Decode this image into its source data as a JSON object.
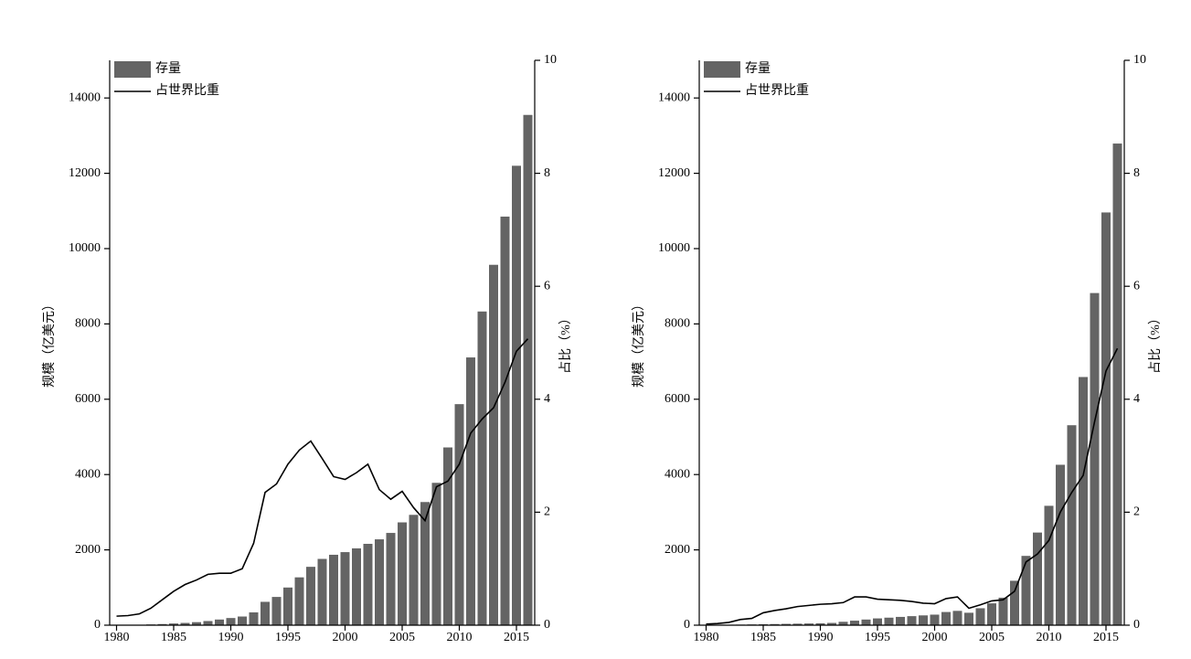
{
  "chart_data": [
    {
      "type": "combo",
      "ylabel": "规模（亿美元）",
      "y2label": "占比（%）",
      "x": [
        1980,
        1981,
        1982,
        1983,
        1984,
        1985,
        1986,
        1987,
        1988,
        1989,
        1990,
        1991,
        1992,
        1993,
        1994,
        1995,
        1996,
        1997,
        1998,
        1999,
        2000,
        2001,
        2002,
        2003,
        2004,
        2005,
        2006,
        2007,
        2008,
        2009,
        2010,
        2011,
        2012,
        2013,
        2014,
        2015,
        2016
      ],
      "xlim": [
        1979.4,
        2016.6
      ],
      "xticks": [
        1980,
        1985,
        1990,
        1995,
        2000,
        2005,
        2010,
        2015
      ],
      "ylim": [
        0,
        15000
      ],
      "yticks": [
        0,
        2000,
        4000,
        6000,
        8000,
        10000,
        12000,
        14000
      ],
      "y2lim": [
        0,
        10
      ],
      "y2ticks": [
        0,
        2,
        4,
        6,
        8,
        10
      ],
      "legend": "upper left",
      "series": [
        {
          "name": "存量",
          "type": "bar",
          "color": "#646464",
          "values": [
            0,
            5,
            10,
            20,
            30,
            45,
            60,
            80,
            110,
            150,
            190,
            230,
            340,
            620,
            750,
            1000,
            1270,
            1550,
            1760,
            1870,
            1940,
            2040,
            2160,
            2280,
            2450,
            2730,
            2930,
            3270,
            3780,
            4720,
            5870,
            7110,
            8330,
            9570,
            10850,
            12200,
            13550
          ]
        },
        {
          "name": "占世界比重",
          "type": "line",
          "color": "#000000",
          "axis": "y2",
          "values": [
            0.16,
            0.17,
            0.2,
            0.3,
            0.45,
            0.6,
            0.72,
            0.8,
            0.9,
            0.92,
            0.92,
            1.0,
            1.45,
            2.35,
            2.5,
            2.85,
            3.1,
            3.26,
            2.95,
            2.63,
            2.58,
            2.7,
            2.85,
            2.4,
            2.23,
            2.37,
            2.08,
            1.85,
            2.45,
            2.55,
            2.85,
            3.4,
            3.65,
            3.85,
            4.3,
            4.85,
            5.07
          ]
        }
      ]
    },
    {
      "type": "combo",
      "ylabel": "规模（亿美元）",
      "y2label": "占比（%）",
      "x": [
        1980,
        1981,
        1982,
        1983,
        1984,
        1985,
        1986,
        1987,
        1988,
        1989,
        1990,
        1991,
        1992,
        1993,
        1994,
        1995,
        1996,
        1997,
        1998,
        1999,
        2000,
        2001,
        2002,
        2003,
        2004,
        2005,
        2006,
        2007,
        2008,
        2009,
        2010,
        2011,
        2012,
        2013,
        2014,
        2015,
        2016
      ],
      "xlim": [
        1979.4,
        2016.6
      ],
      "xticks": [
        1980,
        1985,
        1990,
        1995,
        2000,
        2005,
        2010,
        2015
      ],
      "ylim": [
        0,
        15000
      ],
      "yticks": [
        0,
        2000,
        4000,
        6000,
        8000,
        10000,
        12000,
        14000
      ],
      "y2lim": [
        0,
        10
      ],
      "y2ticks": [
        0,
        2,
        4,
        6,
        8,
        10
      ],
      "legend": "upper left",
      "series": [
        {
          "name": "存量",
          "type": "bar",
          "color": "#646464",
          "values": [
            0,
            5,
            10,
            15,
            20,
            25,
            30,
            35,
            40,
            45,
            50,
            60,
            90,
            120,
            150,
            180,
            200,
            220,
            240,
            260,
            280,
            350,
            380,
            330,
            450,
            580,
            730,
            1180,
            1840,
            2460,
            3170,
            4260,
            5310,
            6590,
            8820,
            10960,
            12790
          ]
        },
        {
          "name": "占世界比重",
          "type": "line",
          "color": "#000000",
          "axis": "y2",
          "values": [
            0.02,
            0.03,
            0.05,
            0.1,
            0.12,
            0.22,
            0.26,
            0.29,
            0.33,
            0.35,
            0.37,
            0.38,
            0.4,
            0.5,
            0.5,
            0.46,
            0.45,
            0.44,
            0.42,
            0.39,
            0.38,
            0.47,
            0.5,
            0.3,
            0.36,
            0.43,
            0.45,
            0.6,
            1.12,
            1.26,
            1.5,
            2.0,
            2.35,
            2.65,
            3.6,
            4.5,
            4.9
          ]
        }
      ]
    }
  ]
}
